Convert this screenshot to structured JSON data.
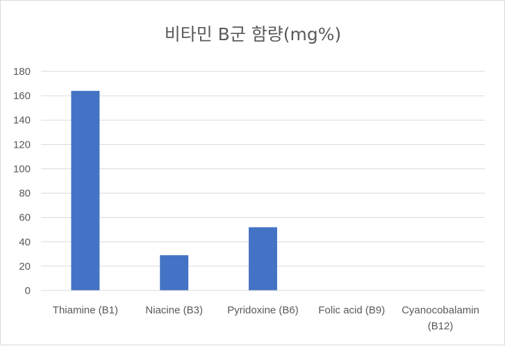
{
  "chart_data": {
    "type": "bar",
    "title": "비타민 B군 함량(mg%)",
    "xlabel": "",
    "ylabel": "",
    "categories": [
      [
        "Thiamine (B1)"
      ],
      [
        "Niacine (B3)"
      ],
      [
        "Pyridoxine (B6)"
      ],
      [
        "Folic acid (B9)"
      ],
      [
        "Cyanocobalamin",
        "(B12)"
      ]
    ],
    "values": [
      164,
      29,
      52,
      0,
      0
    ],
    "ylim": [
      0,
      180
    ],
    "yticks": [
      0,
      20,
      40,
      60,
      80,
      100,
      120,
      140,
      160,
      180
    ],
    "grid": true,
    "legend": "none",
    "bar_color": "#4472c4",
    "grid_color": "#d9d9d9",
    "text_color": "#595959"
  }
}
